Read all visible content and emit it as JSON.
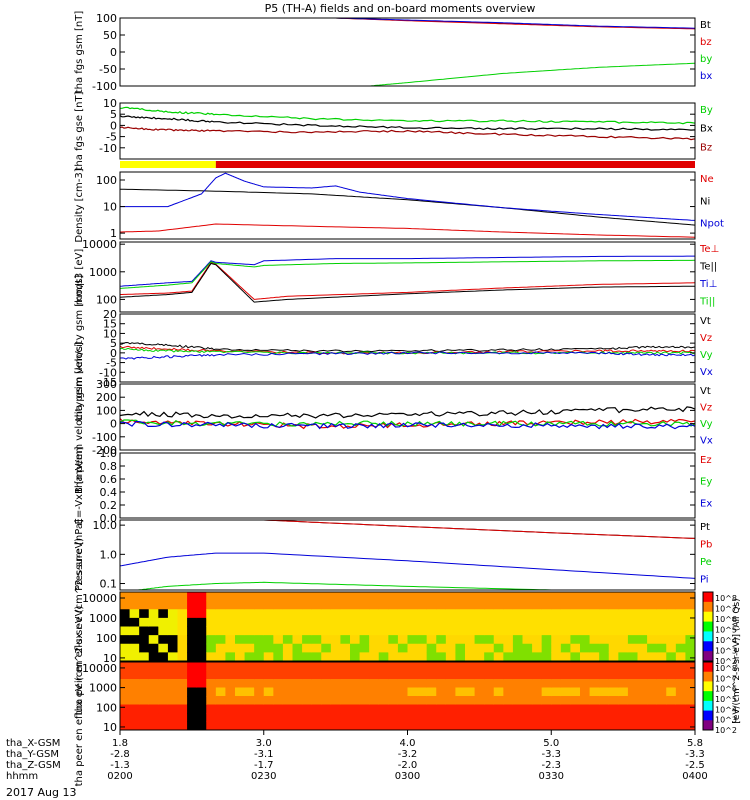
{
  "title": "P5 (TH-A) fields and on-board moments overview",
  "date_label": "2017 Aug 13",
  "colors": {
    "black": "#000000",
    "red": "#e00000",
    "blue": "#0000d8",
    "green": "#00d000",
    "darkred": "#9a0000",
    "yellow": "#ffff00"
  },
  "time_axis": {
    "rows": [
      {
        "name": "tha_X-GSM",
        "values": [
          "1.8",
          "3.0",
          "4.0",
          "5.0",
          "5.8"
        ]
      },
      {
        "name": "tha_Y-GSM",
        "values": [
          "-2.8",
          "-3.1",
          "-3.2",
          "-3.3",
          "-3.3"
        ]
      },
      {
        "name": "tha_Z-GSM",
        "values": [
          "-1.3",
          "-1.7",
          "-2.0",
          "-2.3",
          "-2.5"
        ]
      },
      {
        "name": "hhmm",
        "values": [
          "0200",
          "0230",
          "0300",
          "0330",
          "0400"
        ]
      }
    ]
  },
  "chart_data": [
    {
      "type": "line",
      "title": "",
      "ylabel": "tha fgs gsm [nT]",
      "yscale": "linear",
      "ylim": [
        -100,
        100
      ],
      "yticks": [
        "100",
        "50",
        "0",
        "-50",
        "-100"
      ],
      "xlim": [
        0,
        120
      ],
      "series": [
        {
          "name": "Bt",
          "color": "#000000",
          "x": [
            45,
            60,
            80,
            100,
            120
          ],
          "y": [
            100,
            93,
            84,
            75,
            69
          ]
        },
        {
          "name": "bz",
          "color": "#e00000",
          "x": [
            45,
            60,
            80,
            100,
            120
          ],
          "y": [
            100,
            92,
            83,
            74,
            68
          ]
        },
        {
          "name": "by",
          "color": "#00d000",
          "x": [
            52,
            60,
            80,
            100,
            120
          ],
          "y": [
            -100,
            -90,
            -63,
            -45,
            -33
          ]
        },
        {
          "name": "bx",
          "color": "#0000d8",
          "x": [
            45,
            60,
            80,
            100,
            120
          ],
          "y": [
            100,
            94,
            86,
            76,
            70
          ]
        }
      ]
    },
    {
      "type": "line",
      "title": "",
      "ylabel": "tha fgs gse [nT]",
      "yscale": "linear",
      "ylim": [
        -15,
        10
      ],
      "yticks": [
        "10",
        "5",
        "0",
        "-5",
        "-10"
      ],
      "xlim": [
        0,
        120
      ],
      "series": [
        {
          "name": "By",
          "color": "#00d000",
          "x": [
            0,
            10,
            20,
            40,
            60,
            80,
            100,
            120
          ],
          "y": [
            8,
            6,
            5,
            3,
            2,
            2,
            1.5,
            1
          ]
        },
        {
          "name": "Bx",
          "color": "#000000",
          "x": [
            0,
            10,
            20,
            40,
            60,
            80,
            100,
            120
          ],
          "y": [
            4,
            3,
            1.5,
            0,
            -1,
            -1.5,
            -1.5,
            -2
          ]
        },
        {
          "name": "Bz",
          "color": "#9a0000",
          "x": [
            0,
            10,
            20,
            40,
            60,
            80,
            100,
            120
          ],
          "y": [
            -1,
            -2,
            -2.5,
            -3,
            -2.5,
            -4,
            -5,
            -6
          ]
        }
      ]
    },
    {
      "type": "bar",
      "title": "",
      "ylabel": "",
      "segments": [
        {
          "from": 0,
          "to": 20,
          "color": "#ffff00"
        },
        {
          "from": 20,
          "to": 120,
          "color": "#e00000"
        }
      ]
    },
    {
      "type": "line",
      "title": "",
      "ylabel": "Density [cm-3]",
      "yscale": "log",
      "ylim": [
        0.6,
        200
      ],
      "yticks": [
        "100",
        "10",
        "1"
      ],
      "xlim": [
        0,
        120
      ],
      "series": [
        {
          "name": "Ne",
          "color": "#e00000",
          "x": [
            0,
            8,
            20,
            40,
            60,
            80,
            100,
            120
          ],
          "y": [
            1.1,
            1.2,
            2.2,
            1.8,
            1.5,
            1.1,
            0.85,
            0.7
          ]
        },
        {
          "name": "Ni",
          "color": "#000000",
          "x": [
            0,
            20,
            40,
            60,
            80,
            100,
            120
          ],
          "y": [
            45,
            38,
            30,
            18,
            9,
            4,
            2
          ]
        },
        {
          "name": "Npot",
          "color": "#0000d8",
          "x": [
            0,
            10,
            17,
            20,
            22,
            26,
            30,
            40,
            45,
            50,
            60,
            80,
            100,
            120
          ],
          "y": [
            10,
            10,
            30,
            120,
            180,
            90,
            55,
            50,
            60,
            35,
            20,
            9,
            5,
            3
          ]
        }
      ]
    },
    {
      "type": "line",
      "title": "",
      "ylabel": "moqt3 [eV]",
      "yscale": "log",
      "ylim": [
        35,
        12000
      ],
      "yticks": [
        "10000",
        "1000",
        "100"
      ],
      "xlim": [
        0,
        120
      ],
      "series": [
        {
          "name": "Te⊥",
          "color": "#e00000",
          "x": [
            0,
            10,
            15,
            19,
            20,
            28,
            35,
            60,
            80,
            100,
            120
          ],
          "y": [
            150,
            170,
            200,
            2200,
            1900,
            100,
            130,
            180,
            260,
            350,
            400
          ]
        },
        {
          "name": "Te||",
          "color": "#000000",
          "x": [
            0,
            10,
            15,
            19,
            20,
            28,
            35,
            60,
            80,
            100,
            120
          ],
          "y": [
            120,
            150,
            180,
            2000,
            1800,
            80,
            100,
            160,
            220,
            280,
            300
          ]
        },
        {
          "name": "Ti⊥",
          "color": "#0000d8",
          "x": [
            0,
            10,
            15,
            19,
            20,
            28,
            30,
            45,
            60,
            80,
            100,
            120
          ],
          "y": [
            300,
            400,
            450,
            2500,
            2200,
            1800,
            2500,
            3000,
            3000,
            3300,
            3600,
            3700
          ]
        },
        {
          "name": "Ti||",
          "color": "#00d000",
          "x": [
            0,
            10,
            15,
            19,
            20,
            28,
            30,
            45,
            60,
            80,
            100,
            120
          ],
          "y": [
            250,
            330,
            400,
            2300,
            2000,
            1500,
            1700,
            2000,
            2100,
            2300,
            2500,
            2600
          ]
        }
      ]
    },
    {
      "type": "line",
      "title": "",
      "ylabel": "tha peim velocity gsm [km/s]",
      "yscale": "linear",
      "ylim": [
        -15,
        20
      ],
      "yticks": [
        "20",
        "15",
        "10",
        "5",
        "0",
        "-5",
        "-10",
        "-15"
      ],
      "xlim": [
        0,
        120
      ],
      "series": [
        {
          "name": "Vt",
          "color": "#000000",
          "x": [
            0,
            10,
            20,
            40,
            60,
            80,
            100,
            110,
            120
          ],
          "y": [
            5,
            4,
            2,
            1,
            1,
            1.5,
            2,
            3,
            3
          ]
        },
        {
          "name": "Vz",
          "color": "#e00000",
          "x": [
            0,
            10,
            20,
            40,
            60,
            80,
            100,
            110,
            120
          ],
          "y": [
            3,
            2,
            1,
            0,
            0,
            0.5,
            1,
            1,
            1
          ]
        },
        {
          "name": "Vy",
          "color": "#00d000",
          "x": [
            0,
            10,
            20,
            40,
            60,
            80,
            100,
            110,
            120
          ],
          "y": [
            2,
            1,
            0.5,
            0,
            0,
            0,
            0,
            0,
            0
          ]
        },
        {
          "name": "Vx",
          "color": "#0000d8",
          "x": [
            0,
            10,
            20,
            40,
            60,
            80,
            100,
            110,
            120
          ],
          "y": [
            -3,
            -2,
            -1,
            -0.5,
            0,
            0,
            0,
            -1,
            -1
          ]
        }
      ]
    },
    {
      "type": "line",
      "title": "",
      "ylabel": "tha peem velocity gsm [km/s]",
      "yscale": "linear",
      "ylim": [
        -200,
        300
      ],
      "yticks": [
        "300",
        "200",
        "100",
        "0",
        "-100",
        "-200"
      ],
      "xlim": [
        0,
        120
      ],
      "series": [
        {
          "name": "Vt",
          "color": "#000000",
          "x": [
            0,
            20,
            40,
            60,
            80,
            100,
            120
          ],
          "y": [
            80,
            60,
            60,
            70,
            80,
            100,
            110
          ]
        },
        {
          "name": "Vz",
          "color": "#e00000",
          "x": [
            0,
            20,
            40,
            60,
            80,
            100,
            120
          ],
          "y": [
            20,
            0,
            -20,
            -10,
            0,
            10,
            20
          ]
        },
        {
          "name": "Vy",
          "color": "#00d000",
          "x": [
            0,
            20,
            40,
            60,
            80,
            100,
            120
          ],
          "y": [
            10,
            0,
            0,
            0,
            0,
            0,
            0
          ]
        },
        {
          "name": "Vx",
          "color": "#0000d8",
          "x": [
            0,
            20,
            40,
            60,
            80,
            100,
            120
          ],
          "y": [
            0,
            -10,
            -20,
            -10,
            -10,
            -20,
            -20
          ]
        }
      ]
    },
    {
      "type": "line",
      "title": "",
      "ylabel": "E=-VxB [mV/m]",
      "yscale": "linear",
      "ylim": [
        0,
        1
      ],
      "yticks": [
        "1.0",
        "0.8",
        "0.6",
        "0.4",
        "0.2",
        "0.0"
      ],
      "xlim": [
        0,
        120
      ],
      "series": [
        {
          "name": "Ez",
          "color": "#e00000",
          "x": [],
          "y": []
        },
        {
          "name": "Ey",
          "color": "#00d000",
          "x": [],
          "y": []
        },
        {
          "name": "Ex",
          "color": "#0000d8",
          "x": [],
          "y": []
        }
      ]
    },
    {
      "type": "line",
      "title": "",
      "ylabel": "Pressure [nPa]",
      "yscale": "log",
      "ylim": [
        0.06,
        15
      ],
      "yticks": [
        "10.0",
        "1.0",
        "0.1"
      ],
      "xlim": [
        0,
        120
      ],
      "series": [
        {
          "name": "Pt",
          "color": "#000000",
          "x": [
            30,
            60,
            90,
            120
          ],
          "y": [
            15,
            9,
            5.5,
            3.5
          ]
        },
        {
          "name": "Pb",
          "color": "#e00000",
          "x": [
            30,
            60,
            90,
            120
          ],
          "y": [
            15,
            9,
            5.5,
            3.5
          ]
        },
        {
          "name": "Pe",
          "color": "#00d000",
          "x": [
            0,
            10,
            20,
            30,
            60,
            90,
            120
          ],
          "y": [
            0.05,
            0.08,
            0.1,
            0.11,
            0.08,
            0.06,
            0.05
          ]
        },
        {
          "name": "Pi",
          "color": "#0000d8",
          "x": [
            0,
            10,
            20,
            30,
            60,
            90,
            120
          ],
          "y": [
            0.4,
            0.8,
            1.1,
            1.1,
            0.6,
            0.3,
            0.15
          ]
        }
      ]
    },
    {
      "type": "heatmap",
      "title": "",
      "ylabel": "tha peir en eflux eV (cm^2-s-sr-eV)",
      "yscale": "log",
      "ylim": [
        7,
        20000
      ],
      "yticks": [
        "10000",
        "1000",
        "100",
        "10"
      ],
      "colorbar": {
        "label": "[eV/(cm^2-s-sr-eV)] (All Qs)",
        "ticks": [
          "10^8",
          "10^7",
          "10^6",
          "10^5",
          "10^4",
          "10^3",
          "10^2"
        ]
      },
      "xlim": [
        0,
        120
      ]
    },
    {
      "type": "heatmap",
      "title": "",
      "ylabel": "tha peer en eflux eV (cm^2-s-sr-eV)",
      "yscale": "log",
      "ylim": [
        7,
        20000
      ],
      "yticks": [
        "10000",
        "1000",
        "100",
        "10"
      ],
      "colorbar": {
        "label": "",
        "ticks": [
          "10^8",
          "10^7",
          "10^6",
          "10^5",
          "10^4",
          "10^3",
          "10^2"
        ]
      },
      "xlim": [
        0,
        120
      ]
    }
  ]
}
